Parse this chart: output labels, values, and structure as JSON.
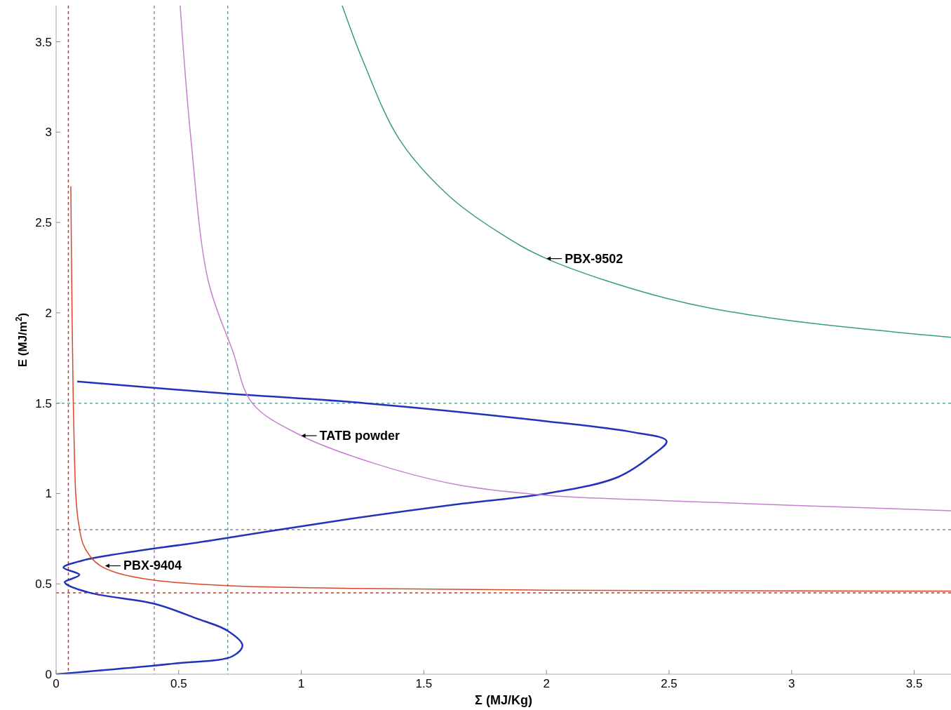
{
  "chart_data": {
    "type": "line",
    "xlabel": "Σ (MJ/Kg)",
    "ylabel": "E (MJ/m$^{2}$)",
    "xlim": [
      0,
      3.65
    ],
    "ylim": [
      0,
      3.7
    ],
    "xticks": [
      0,
      0.5,
      1,
      1.5,
      2,
      2.5,
      3,
      3.5
    ],
    "yticks": [
      0,
      0.5,
      1,
      1.5,
      2,
      2.5,
      3,
      3.5
    ],
    "grid": false,
    "marker": "none",
    "series": [
      {
        "color": "#2233bb",
        "x": [
          0.086,
          0.63,
          1.26,
          2.0,
          2.35,
          2.49,
          2.43,
          2.29,
          2.0,
          1.63,
          1.2,
          0.63,
          0.11,
          0.03,
          0.095,
          0.035,
          0.04,
          0.14,
          0.4,
          0.57,
          0.7,
          0.76,
          0.72,
          0.49,
          0
        ],
        "values": [
          1.62,
          1.56,
          1.5,
          1.4,
          1.34,
          1.29,
          1.21,
          1.09,
          1.0,
          0.94,
          0.86,
          0.74,
          0.63,
          0.59,
          0.55,
          0.51,
          0.5,
          0.45,
          0.39,
          0.31,
          0.24,
          0.16,
          0.1,
          0.06,
          0
        ]
      },
      {
        "color": "#d9482b",
        "x": [
          0.06,
          0.065,
          0.07,
          0.075,
          0.08,
          0.09,
          0.11,
          0.14,
          0.18,
          0.25,
          0.4,
          0.7,
          1.2,
          2.0,
          3.65
        ],
        "values": [
          2.7,
          2.0,
          1.5,
          1.2,
          1.0,
          0.85,
          0.72,
          0.65,
          0.6,
          0.56,
          0.52,
          0.49,
          0.475,
          0.465,
          0.46
        ]
      },
      {
        "color": "#c77fd0",
        "x": [
          0.506,
          0.55,
          0.62,
          0.72,
          0.8,
          1.0,
          1.29,
          1.63,
          2.0,
          2.49,
          3.65
        ],
        "values": [
          3.7,
          2.96,
          2.18,
          1.79,
          1.5,
          1.32,
          1.17,
          1.05,
          0.99,
          0.96,
          0.905
        ]
      },
      {
        "color": "#3aa06e",
        "x": [
          1.167,
          1.25,
          1.4,
          1.6,
          1.8,
          2.0,
          2.49,
          2.92,
          3.65
        ],
        "values": [
          3.7,
          3.4,
          2.96,
          2.65,
          2.45,
          2.3,
          2.08,
          1.97,
          1.865
        ]
      }
    ],
    "ref_lines": [
      {
        "axis": "x",
        "value": 0.05,
        "color": "#c0392b",
        "line_style": "dashed"
      },
      {
        "axis": "x",
        "value": 0.4,
        "color": "#b07ec0",
        "line_style": "dashed"
      },
      {
        "axis": "x",
        "value": 0.7,
        "color": "#5aa8a0",
        "line_style": "dashed"
      },
      {
        "axis": "y",
        "value": 0.45,
        "color": "#c0392b",
        "line_style": "dashed"
      },
      {
        "axis": "y",
        "value": 0.8,
        "color": "#888888",
        "line_style": "dashed"
      },
      {
        "axis": "y",
        "value": 1.5,
        "color": "#5aa8a0",
        "line_style": "dashed"
      }
    ],
    "annotations": [
      {
        "text": "PBX-9502",
        "x": 2.0,
        "y": 2.3
      },
      {
        "text": "TATB powder",
        "x": 1.0,
        "y": 1.32
      },
      {
        "text": "PBX-9404",
        "x": 0.2,
        "y": 0.6
      }
    ]
  }
}
